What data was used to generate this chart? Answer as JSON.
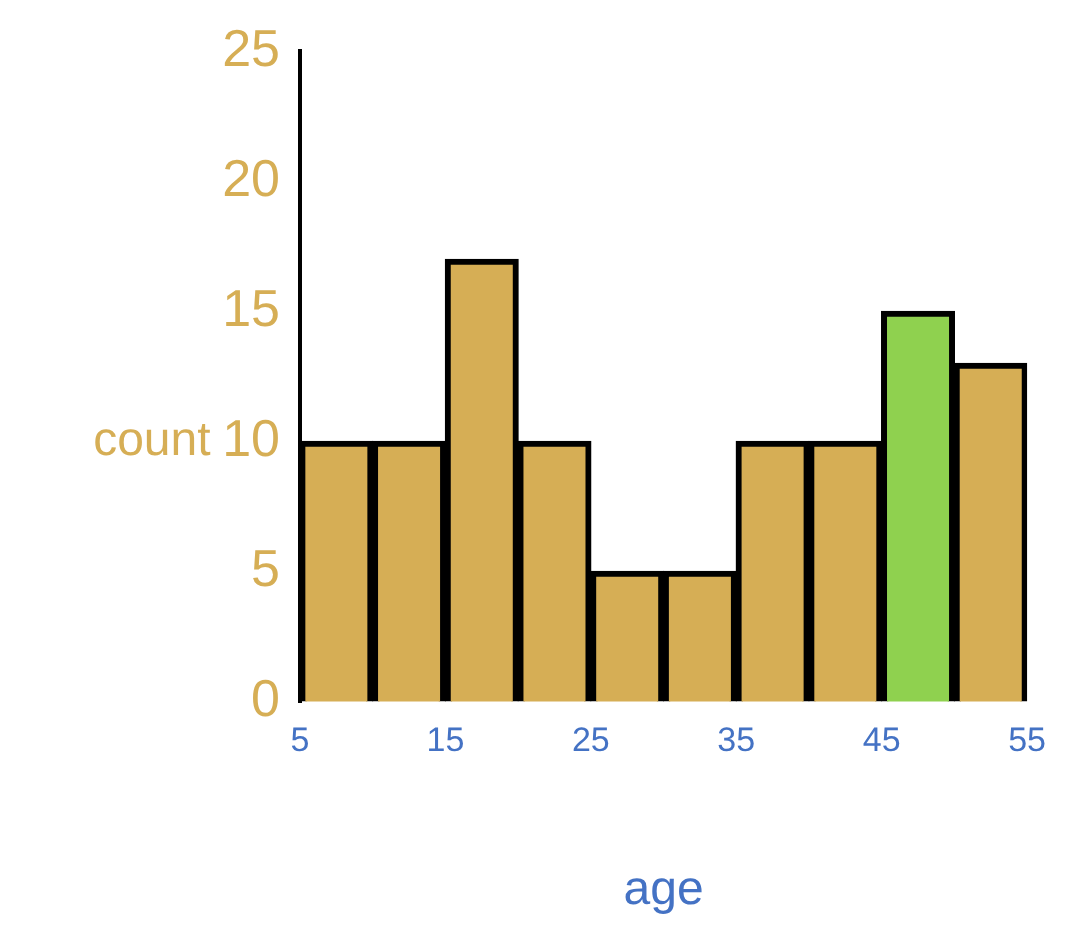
{
  "chart_data": {
    "type": "histogram",
    "xlabel": "age",
    "ylabel": "count",
    "bins": [
      5,
      10,
      15,
      20,
      25,
      30,
      35,
      40,
      45,
      50,
      55
    ],
    "values": [
      10,
      10,
      17,
      10,
      5,
      5,
      10,
      10,
      15,
      13
    ],
    "colors": [
      "#d6ae55",
      "#d6ae55",
      "#d6ae55",
      "#d6ae55",
      "#d6ae55",
      "#d6ae55",
      "#d6ae55",
      "#d6ae55",
      "#8fd14f",
      "#d6ae55"
    ],
    "xlim": [
      5,
      55
    ],
    "xticks": [
      5,
      15,
      25,
      35,
      45,
      55
    ],
    "ylim": [
      0,
      25
    ],
    "yticks": [
      0,
      5,
      10,
      15,
      20,
      25
    ],
    "grid": false,
    "legend": false
  }
}
